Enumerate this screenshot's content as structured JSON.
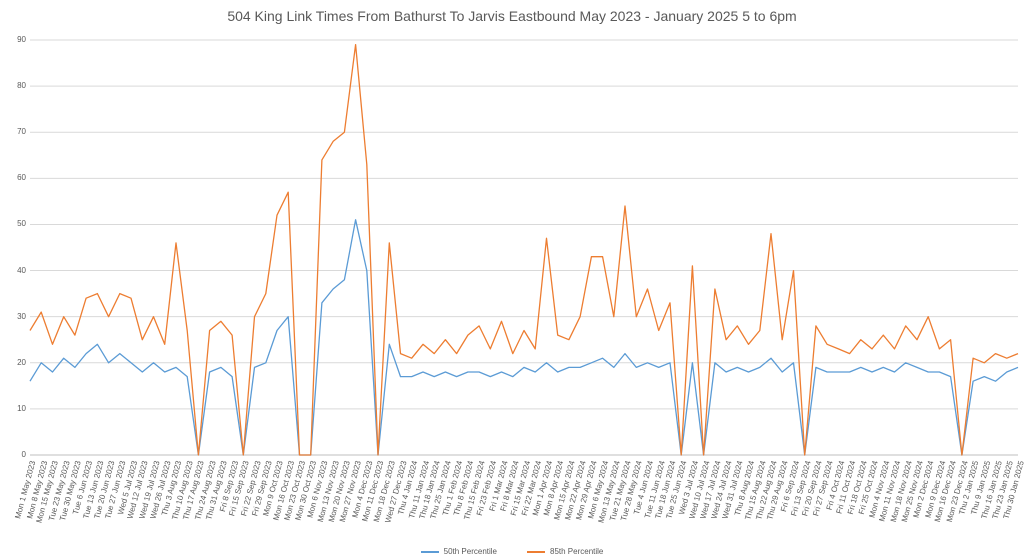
{
  "colors": {
    "p50": "#5B9BD5",
    "p85": "#ED7D31",
    "grid": "#D9D9D9",
    "axis": "#BFBFBF",
    "text": "#595959",
    "background": "#FFFFFF"
  },
  "chart_data": {
    "type": "line",
    "title": "504 King Link Times From Bathurst To Jarvis Eastbound May 2023 - January 2025 5 to 6pm",
    "xlabel": "",
    "ylabel": "",
    "ylim": [
      0,
      90
    ],
    "yticks": [
      0,
      10,
      20,
      30,
      40,
      50,
      60,
      70,
      80,
      90
    ],
    "grid": true,
    "legend_position": "bottom",
    "categories": [
      "Mon 1 May 2023",
      "Mon 8 May 2023",
      "Mon 15 May 2023",
      "Tue 23 May 2023",
      "Tue 30 May 2023",
      "Tue 6 Jun 2023",
      "Tue 13 Jun 2023",
      "Tue 20 Jun 2023",
      "Tue 27 Jun 2023",
      "Wed 5 Jul 2023",
      "Wed 12 Jul 2023",
      "Wed 19 Jul 2023",
      "Wed 26 Jul 2023",
      "Thu 3 Aug 2023",
      "Thu 10 Aug 2023",
      "Thu 17 Aug 2023",
      "Thu 24 Aug 2023",
      "Thu 31 Aug 2023",
      "Fri 8 Sep 2023",
      "Fri 15 Sep 2023",
      "Fri 22 Sep 2023",
      "Fri 29 Sep 2023",
      "Mon 9 Oct 2023",
      "Mon 16 Oct 2023",
      "Mon 23 Oct 2023",
      "Mon 30 Oct 2023",
      "Mon 6 Nov 2023",
      "Mon 13 Nov 2023",
      "Mon 20 Nov 2023",
      "Mon 27 Nov 2023",
      "Mon 4 Dec 2023",
      "Mon 11 Dec 2023",
      "Mon 18 Dec 2023",
      "Wed 27 Dec 2023",
      "Thu 4 Jan 2024",
      "Thu 11 Jan 2024",
      "Thu 18 Jan 2024",
      "Thu 25 Jan 2024",
      "Thu 1 Feb 2024",
      "Thu 8 Feb 2024",
      "Thu 15 Feb 2024",
      "Fri 23 Feb 2024",
      "Fri 1 Mar 2024",
      "Fri 8 Mar 2024",
      "Fri 15 Mar 2024",
      "Fri 22 Mar 2024",
      "Mon 1 Apr 2024",
      "Mon 8 Apr 2024",
      "Mon 15 Apr 2024",
      "Mon 22 Apr 2024",
      "Mon 29 Apr 2024",
      "Mon 6 May 2024",
      "Mon 13 May 2024",
      "Tue 21 May 2024",
      "Tue 28 May 2024",
      "Tue 4 Jun 2024",
      "Tue 11 Jun 2024",
      "Tue 18 Jun 2024",
      "Tue 25 Jun 2024",
      "Wed 3 Jul 2024",
      "Wed 10 Jul 2024",
      "Wed 17 Jul 2024",
      "Wed 24 Jul 2024",
      "Wed 31 Jul 2024",
      "Thu 8 Aug 2024",
      "Thu 15 Aug 2024",
      "Thu 22 Aug 2024",
      "Thu 29 Aug 2024",
      "Fri 6 Sep 2024",
      "Fri 13 Sep 2024",
      "Fri 20 Sep 2024",
      "Fri 27 Sep 2024",
      "Fri 4 Oct 2024",
      "Fri 11 Oct 2024",
      "Fri 18 Oct 2024",
      "Fri 25 Oct 2024",
      "Mon 4 Nov 2024",
      "Mon 11 Nov 2024",
      "Mon 18 Nov 2024",
      "Mon 25 Nov 2024",
      "Mon 2 Dec 2024",
      "Mon 9 Dec 2024",
      "Mon 16 Dec 2024",
      "Mon 23 Dec 2024",
      "Thu 2 Jan 2025",
      "Thu 9 Jan 2025",
      "Thu 16 Jan 2025",
      "Thu 23 Jan 2025",
      "Thu 30 Jan 2025"
    ],
    "series": [
      {
        "name": "50th Percentile",
        "color": "#5B9BD5",
        "values": [
          16,
          20,
          18,
          21,
          19,
          22,
          24,
          20,
          22,
          20,
          18,
          20,
          18,
          19,
          17,
          0,
          18,
          19,
          17,
          0,
          19,
          20,
          27,
          30,
          0,
          0,
          33,
          36,
          38,
          51,
          40,
          0,
          24,
          17,
          17,
          18,
          17,
          18,
          17,
          18,
          18,
          17,
          18,
          17,
          19,
          18,
          20,
          18,
          19,
          19,
          20,
          21,
          19,
          22,
          19,
          20,
          19,
          20,
          0,
          20,
          0,
          20,
          18,
          19,
          18,
          19,
          21,
          18,
          20,
          0,
          19,
          18,
          18,
          18,
          19,
          18,
          19,
          18,
          20,
          19,
          18,
          18,
          17,
          0,
          16,
          17,
          16,
          18,
          19
        ]
      },
      {
        "name": "85th Percentile",
        "color": "#ED7D31",
        "values": [
          27,
          31,
          24,
          30,
          26,
          34,
          35,
          30,
          35,
          34,
          25,
          30,
          24,
          46,
          27,
          0,
          27,
          29,
          26,
          0,
          30,
          35,
          52,
          57,
          0,
          0,
          64,
          68,
          70,
          89,
          63,
          0,
          46,
          22,
          21,
          24,
          22,
          25,
          22,
          26,
          28,
          23,
          29,
          22,
          27,
          23,
          47,
          26,
          25,
          30,
          43,
          43,
          30,
          54,
          30,
          36,
          27,
          33,
          0,
          41,
          0,
          36,
          25,
          28,
          24,
          27,
          48,
          25,
          40,
          0,
          28,
          24,
          23,
          22,
          25,
          23,
          26,
          23,
          28,
          25,
          30,
          23,
          25,
          0,
          21,
          20,
          22,
          21,
          22
        ]
      }
    ]
  }
}
